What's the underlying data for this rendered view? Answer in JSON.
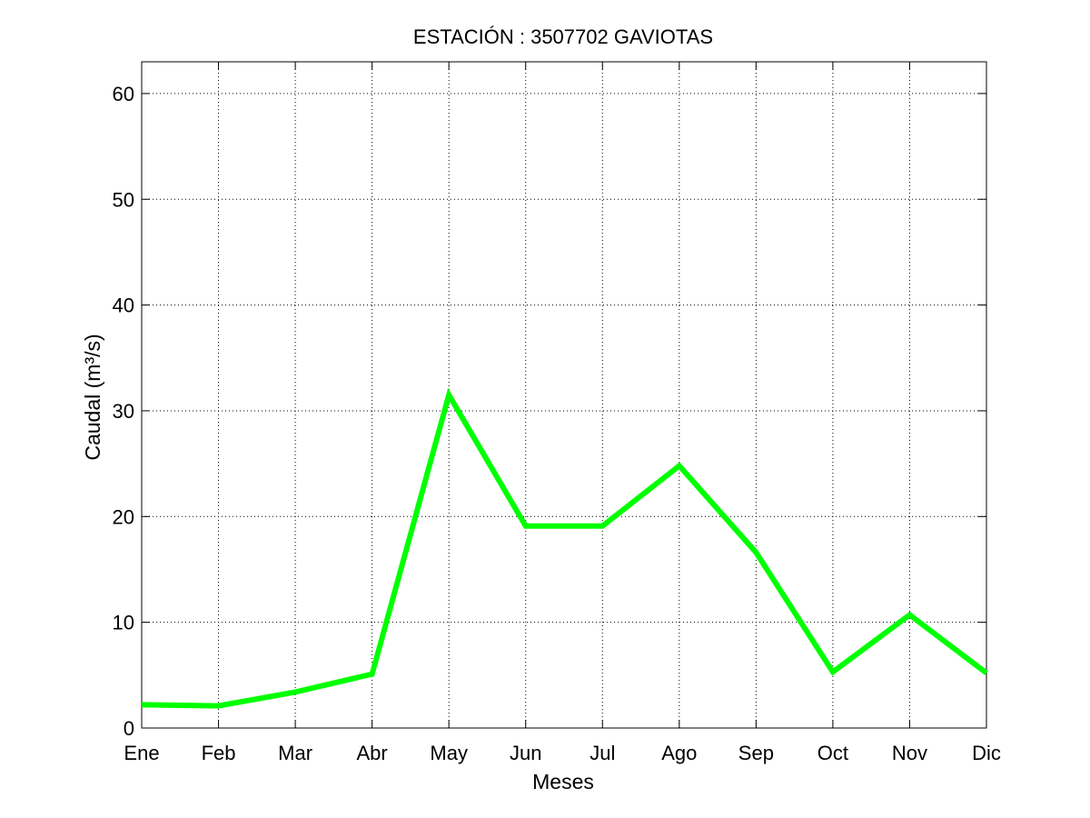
{
  "chart_data": {
    "type": "line",
    "title": "ESTACIÓN : 3507702  GAVIOTAS",
    "xlabel": "Meses",
    "ylabel": "Caudal (m³/s)",
    "categories": [
      "Ene",
      "Feb",
      "Mar",
      "Abr",
      "May",
      "Jun",
      "Jul",
      "Ago",
      "Sep",
      "Oct",
      "Nov",
      "Dic"
    ],
    "series": [
      {
        "color": "#00ff00",
        "values": [
          2.2,
          2.1,
          3.4,
          5.1,
          31.5,
          19.1,
          19.1,
          24.8,
          16.6,
          5.3,
          10.7,
          5.2
        ]
      }
    ],
    "ylim": [
      0,
      63
    ],
    "yticks": [
      0,
      10,
      20,
      30,
      40,
      50,
      60
    ],
    "grid": true
  }
}
